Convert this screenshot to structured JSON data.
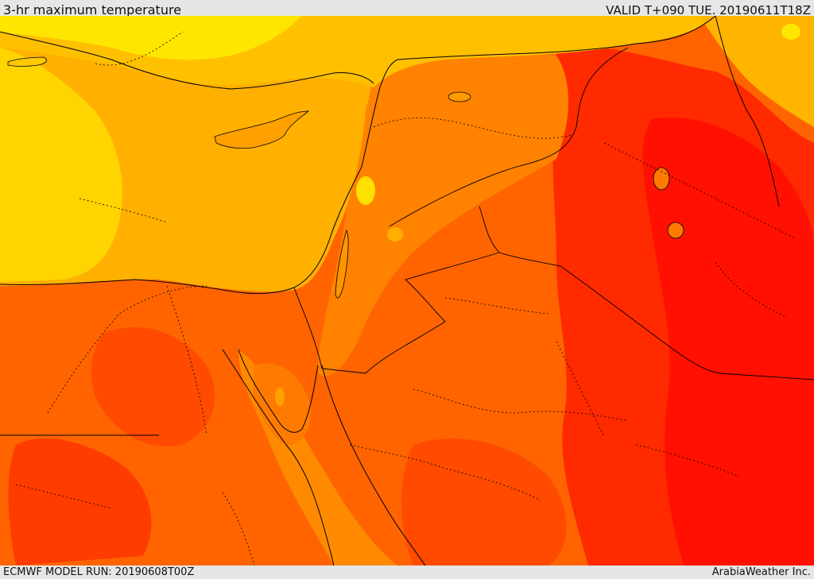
{
  "header": {
    "title": "3-hr maximum temperature",
    "valid_time": "VALID T+090 TUE. 20190611T18Z"
  },
  "footer": {
    "model_run": "ECMWF MODEL RUN: 20190608T00Z",
    "credit": "ArabiaWeather Inc."
  },
  "map": {
    "field": "3-hr maximum temperature",
    "palette": {
      "coolest": "#ffff00",
      "cool": "#ffd400",
      "mild": "#ffb000",
      "warm": "#ff8c00",
      "hot": "#ff6400",
      "hotter": "#ff4000",
      "hottest": "#ff0000"
    },
    "coastline_color": "#000000",
    "border_style": "dotted"
  }
}
